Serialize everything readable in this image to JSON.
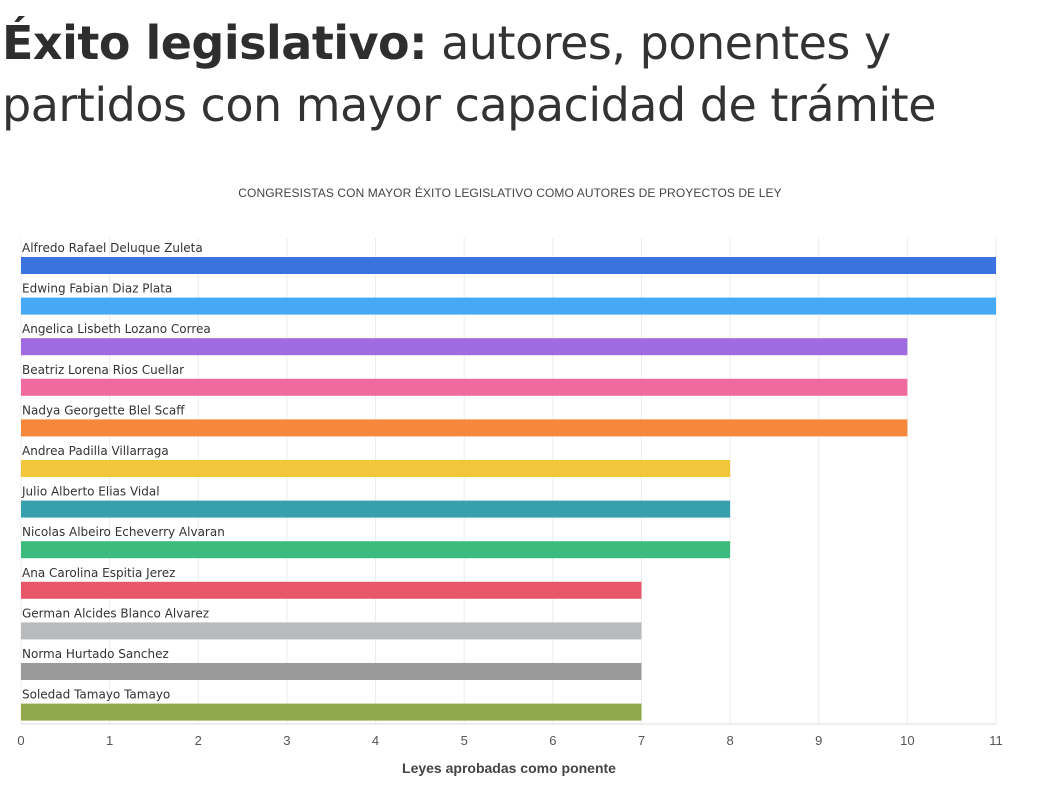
{
  "header": {
    "title_bold": "Éxito legislativo:",
    "title_rest": " autores, ponentes y partidos con mayor capacidad de trámite"
  },
  "chart_data": {
    "type": "bar",
    "orientation": "horizontal",
    "title": "CONGRESISTAS CON MAYOR ÉXITO LEGISLATIVO COMO AUTORES DE PROYECTOS DE LEY",
    "xlabel": "Leyes aprobadas como ponente",
    "ylabel": "",
    "xlim": [
      0,
      11
    ],
    "xticks": [
      0,
      1,
      2,
      3,
      4,
      5,
      6,
      7,
      8,
      9,
      10,
      11
    ],
    "grid": true,
    "legend": "none",
    "categories": [
      "Alfredo Rafael Deluque Zuleta",
      "Edwing Fabian Diaz Plata",
      "Angelica Lisbeth Lozano Correa",
      "Beatriz Lorena Rios Cuellar",
      "Nadya Georgette Blel Scaff",
      "Andrea Padilla Villarraga",
      "Julio Alberto Elias Vidal",
      "Nicolas Albeiro Echeverry Alvaran",
      "Ana Carolina Espitia Jerez",
      "German Alcides Blanco Alvarez",
      "Norma Hurtado Sanchez",
      "Soledad Tamayo Tamayo"
    ],
    "values": [
      11,
      11,
      10,
      10,
      10,
      8,
      8,
      8,
      7,
      7,
      7,
      7
    ],
    "colors": [
      "#3a73e0",
      "#46a9f5",
      "#a06ae0",
      "#f06aa0",
      "#f5883a",
      "#f2c63a",
      "#389fac",
      "#3dbb7e",
      "#e8566a",
      "#b8babd",
      "#9a9a9a",
      "#8ea84a"
    ]
  }
}
